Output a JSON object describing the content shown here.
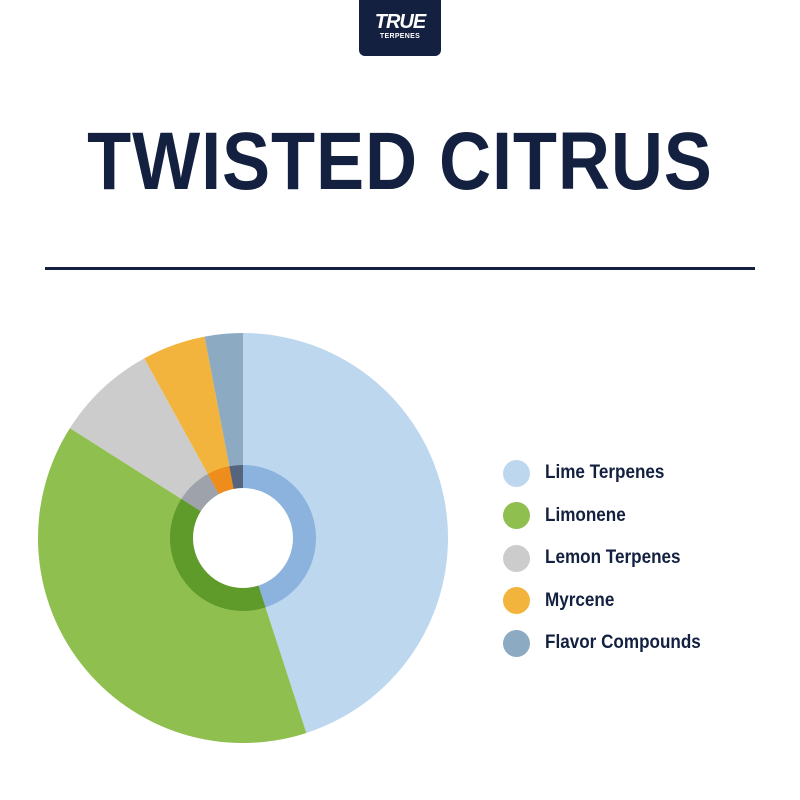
{
  "logo": {
    "line1": "TRUE",
    "line2": "TERPENES"
  },
  "chart_data": {
    "type": "pie",
    "title": "TWISTED CITRUS",
    "legend_position": "right",
    "categories": [
      "Lime Terpenes",
      "Limonene",
      "Lemon Terpenes",
      "Myrcene",
      "Flavor Compounds"
    ],
    "values": [
      45,
      39,
      8,
      5,
      3
    ],
    "colors": [
      "#bdd7ef",
      "#8fbf4f",
      "#cccccc",
      "#f2b43c",
      "#8caac2"
    ],
    "inner_colors": [
      "#8cb3dd",
      "#5e9b2a",
      "#9ea3ab",
      "#ee8c1c",
      "#56657e"
    ]
  }
}
